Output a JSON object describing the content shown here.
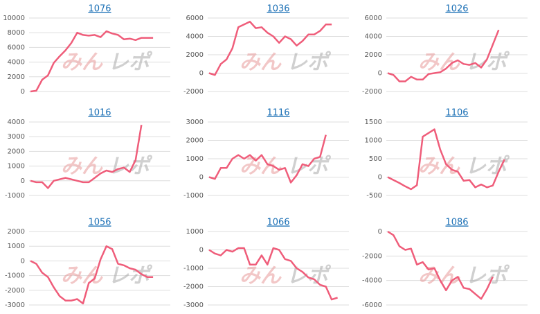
{
  "chart_data": [
    {
      "type": "line",
      "title": "1076",
      "ylim": [
        0,
        10000
      ],
      "yticks": [
        0,
        2000,
        4000,
        6000,
        8000,
        10000
      ],
      "grid": true,
      "color": "#ef5d7a",
      "values": [
        0,
        100,
        1600,
        2200,
        3900,
        4800,
        5600,
        6600,
        8000,
        7700,
        7600,
        7700,
        7400,
        8200,
        7900,
        7700,
        7100,
        7200,
        7000,
        7300,
        7300,
        7300
      ]
    },
    {
      "type": "line",
      "title": "1036",
      "ylim": [
        -2000,
        6000
      ],
      "yticks": [
        -2000,
        0,
        2000,
        4000,
        6000
      ],
      "grid": true,
      "color": "#ef5d7a",
      "values": [
        0,
        -200,
        1000,
        1500,
        2700,
        5000,
        5300,
        5600,
        4900,
        5000,
        4400,
        4000,
        3300,
        4000,
        3700,
        3000,
        3500,
        4200,
        4200,
        4600,
        5300,
        5300
      ]
    },
    {
      "type": "line",
      "title": "1026",
      "ylim": [
        -2000,
        6000
      ],
      "yticks": [
        -2000,
        0,
        2000,
        4000,
        6000
      ],
      "grid": true,
      "color": "#ef5d7a",
      "values": [
        0,
        -200,
        -900,
        -900,
        -400,
        -700,
        -700,
        -100,
        0,
        100,
        500,
        1100,
        1400,
        1000,
        900,
        1100,
        600,
        1500,
        3100,
        4700
      ]
    },
    {
      "type": "line",
      "title": "1016",
      "ylim": [
        -1000,
        4000
      ],
      "yticks": [
        -1000,
        0,
        1000,
        2000,
        3000,
        4000
      ],
      "grid": true,
      "color": "#ef5d7a",
      "values": [
        0,
        -100,
        -100,
        -500,
        0,
        100,
        200,
        100,
        0,
        -100,
        -100,
        200,
        500,
        700,
        600,
        800,
        900,
        600,
        1400,
        3800
      ]
    },
    {
      "type": "line",
      "title": "1116",
      "ylim": [
        -1000,
        3000
      ],
      "yticks": [
        -1000,
        0,
        1000,
        2000,
        3000
      ],
      "grid": true,
      "color": "#ef5d7a",
      "values": [
        0,
        -100,
        500,
        500,
        1000,
        1200,
        1000,
        1200,
        900,
        1200,
        700,
        600,
        400,
        500,
        -300,
        100,
        700,
        600,
        1000,
        1100,
        2300
      ]
    },
    {
      "type": "line",
      "title": "1106",
      "ylim": [
        -500,
        1500
      ],
      "yticks": [
        -500,
        0,
        500,
        1000,
        1500
      ],
      "grid": true,
      "color": "#ef5d7a",
      "values": [
        0,
        -80,
        -160,
        -250,
        -330,
        -220,
        1100,
        1200,
        1300,
        750,
        350,
        200,
        150,
        -100,
        -80,
        -280,
        -200,
        -280,
        -230,
        150,
        480
      ]
    },
    {
      "type": "line",
      "title": "1056",
      "ylim": [
        -3000,
        2000
      ],
      "yticks": [
        -3000,
        -2000,
        -1000,
        0,
        1000,
        2000
      ],
      "grid": true,
      "color": "#ef5d7a",
      "values": [
        0,
        -200,
        -800,
        -1100,
        -1800,
        -2400,
        -2700,
        -2700,
        -2600,
        -2900,
        -1500,
        -1200,
        100,
        1000,
        800,
        -200,
        -300,
        -500,
        -600,
        -900,
        -1100,
        -1100
      ]
    },
    {
      "type": "line",
      "title": "1066",
      "ylim": [
        -3000,
        1000
      ],
      "yticks": [
        -3000,
        -2000,
        -1000,
        0,
        1000
      ],
      "grid": true,
      "color": "#ef5d7a",
      "values": [
        0,
        -200,
        -300,
        0,
        -100,
        100,
        100,
        -800,
        -800,
        -300,
        -800,
        100,
        0,
        -500,
        -600,
        -1000,
        -1200,
        -1500,
        -1600,
        -1900,
        -2000,
        -2700,
        -2600
      ]
    },
    {
      "type": "line",
      "title": "1086",
      "ylim": [
        -6000,
        0
      ],
      "yticks": [
        -6000,
        -4000,
        -2000,
        0
      ],
      "grid": true,
      "color": "#ef5d7a",
      "values": [
        0,
        -300,
        -1200,
        -1500,
        -1400,
        -2700,
        -2500,
        -3100,
        -3000,
        -4000,
        -4800,
        -4000,
        -3700,
        -4600,
        -4700,
        -5100,
        -5500,
        -4700,
        -3700
      ]
    }
  ],
  "watermark": [
    "みん",
    "レポ"
  ]
}
